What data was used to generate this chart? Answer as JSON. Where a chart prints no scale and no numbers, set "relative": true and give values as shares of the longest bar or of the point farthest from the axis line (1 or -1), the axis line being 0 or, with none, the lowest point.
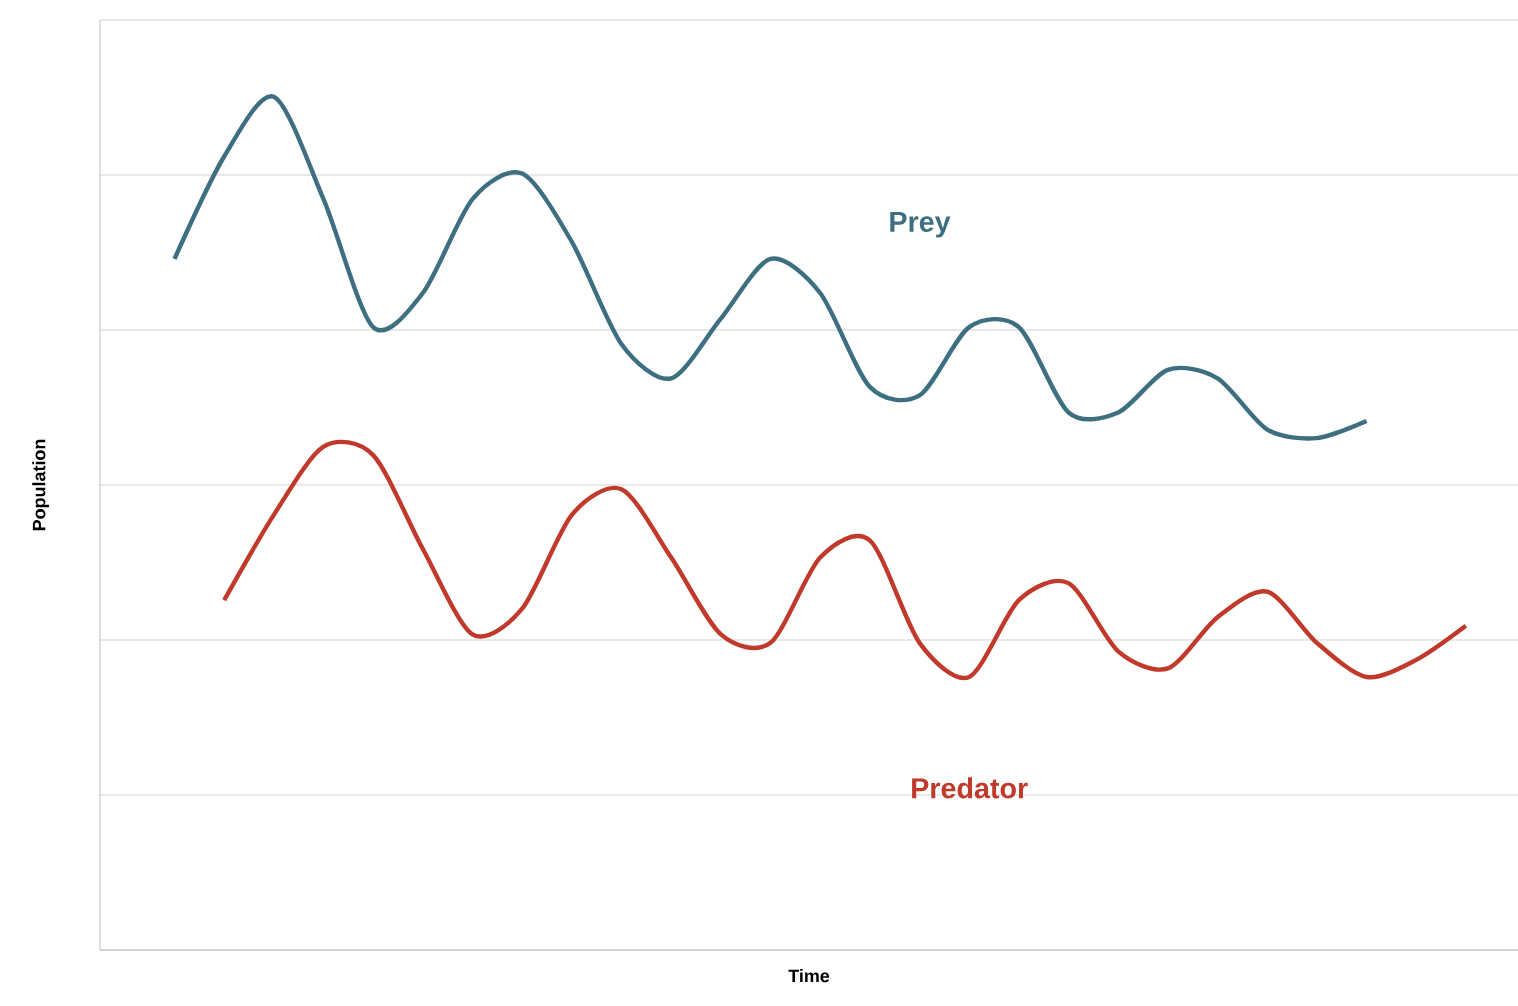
{
  "chart_data": {
    "type": "line",
    "relative": true,
    "xlabel": "Time",
    "ylabel": "Population",
    "grid": "y",
    "marker": "none",
    "line_style": "solid",
    "categories": [
      null,
      null,
      null,
      null,
      null,
      null,
      null,
      null,
      null,
      null,
      null,
      null,
      null,
      null,
      null,
      null,
      null,
      null,
      null,
      null,
      null,
      null,
      null,
      null,
      null,
      null,
      null
    ],
    "series": [
      {
        "name": "Prey",
        "color": "#3d6f80",
        "values": [
          0.81,
          0.93,
          1.0,
          0.88,
          0.73,
          0.77,
          0.88,
          0.91,
          0.83,
          0.71,
          0.67,
          0.74,
          0.81,
          0.77,
          0.66,
          0.65,
          0.73,
          0.73,
          0.63,
          0.63,
          0.68,
          0.67,
          0.61,
          0.6,
          0.62,
          null,
          null
        ]
      },
      {
        "name": "Predator",
        "color": "#c0392b",
        "values": [
          null,
          0.41,
          0.51,
          0.59,
          0.58,
          0.47,
          0.37,
          0.4,
          0.51,
          0.54,
          0.46,
          0.37,
          0.36,
          0.46,
          0.48,
          0.36,
          0.32,
          0.41,
          0.43,
          0.35,
          0.33,
          0.39,
          0.42,
          0.36,
          0.32,
          0.34,
          0.38
        ]
      }
    ]
  }
}
